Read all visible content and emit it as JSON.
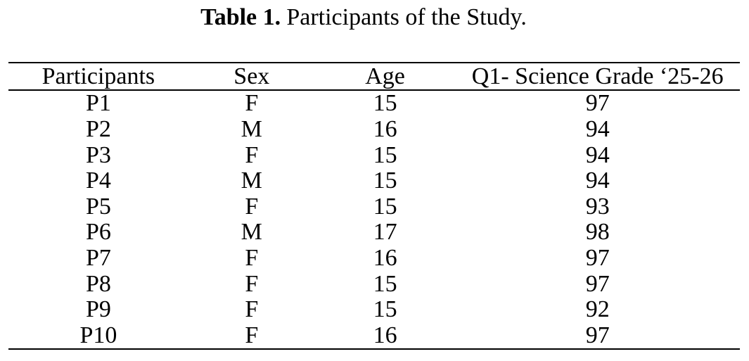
{
  "caption": {
    "label": "Table 1.",
    "text": "Participants of the Study."
  },
  "table": {
    "columns": [
      "Participants",
      "Sex",
      "Age",
      "Q1- Science Grade ‘25-26"
    ],
    "rows": [
      [
        "P1",
        "F",
        "15",
        "97"
      ],
      [
        "P2",
        "M",
        "16",
        "94"
      ],
      [
        "P3",
        "F",
        "15",
        "94"
      ],
      [
        "P4",
        "M",
        "15",
        "94"
      ],
      [
        "P5",
        "F",
        "15",
        "93"
      ],
      [
        "P6",
        "M",
        "17",
        "98"
      ],
      [
        "P7",
        "F",
        "16",
        "97"
      ],
      [
        "P8",
        "F",
        "15",
        "97"
      ],
      [
        "P9",
        "F",
        "15",
        "92"
      ],
      [
        "P10",
        "F",
        "16",
        "97"
      ]
    ]
  }
}
